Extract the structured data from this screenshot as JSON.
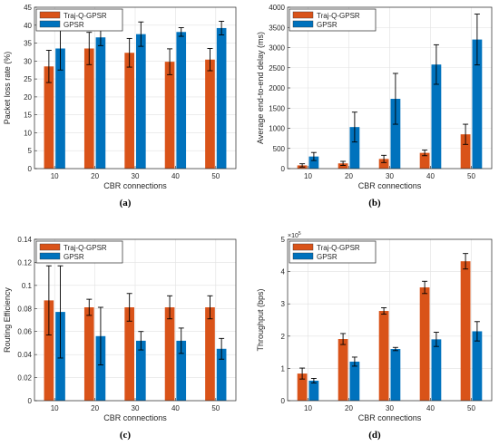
{
  "figure": {
    "panels": [
      {
        "caption": "(a)"
      },
      {
        "caption": "(b)"
      },
      {
        "caption": "(c)"
      },
      {
        "caption": "(d)"
      }
    ]
  },
  "chart_data": [
    {
      "type": "bar",
      "xlabel": "CBR connections",
      "ylabel": "Packet loss rate (%)",
      "categories": [
        "10",
        "20",
        "30",
        "40",
        "50"
      ],
      "ylim": [
        0,
        45
      ],
      "yticks": [
        0,
        5,
        10,
        15,
        20,
        25,
        30,
        35,
        40,
        45
      ],
      "ytick_labels": [
        "0",
        "5",
        "10",
        "15",
        "20",
        "25",
        "30",
        "35",
        "40",
        "45"
      ],
      "grid": true,
      "legend": "top-left",
      "series": [
        {
          "name": "Traj-Q-GPSR",
          "values": [
            28.5,
            33.5,
            32.3,
            29.8,
            30.4
          ],
          "errors": [
            4.5,
            4.5,
            4.0,
            3.6,
            3.1
          ]
        },
        {
          "name": "GPSR",
          "values": [
            33.5,
            36.6,
            37.5,
            38.1,
            39.2
          ],
          "errors": [
            6.0,
            2.3,
            3.4,
            1.2,
            1.9
          ]
        }
      ],
      "colors": [
        "#D95319",
        "#0072BD"
      ]
    },
    {
      "type": "bar",
      "xlabel": "CBR connections",
      "ylabel": "Average end-to-end delay (ms)",
      "categories": [
        "10",
        "20",
        "30",
        "40",
        "50"
      ],
      "ylim": [
        0,
        4000
      ],
      "yticks": [
        0,
        500,
        1000,
        1500,
        2000,
        2500,
        3000,
        3500,
        4000
      ],
      "ytick_labels": [
        "0",
        "500",
        "1000",
        "1500",
        "2000",
        "2500",
        "3000",
        "3500",
        "4000"
      ],
      "grid": true,
      "legend": "top-left",
      "series": [
        {
          "name": "Traj-Q-GPSR",
          "values": [
            80,
            130,
            240,
            390,
            850
          ],
          "errors": [
            40,
            50,
            90,
            70,
            250
          ]
        },
        {
          "name": "GPSR",
          "values": [
            300,
            1030,
            1730,
            2580,
            3200
          ],
          "errors": [
            100,
            370,
            630,
            490,
            630
          ]
        }
      ],
      "colors": [
        "#D95319",
        "#0072BD"
      ]
    },
    {
      "type": "bar",
      "xlabel": "CBR connections",
      "ylabel": "Routing Efficiency",
      "categories": [
        "10",
        "20",
        "30",
        "40",
        "50"
      ],
      "ylim": [
        0,
        0.14
      ],
      "yticks": [
        0,
        0.02,
        0.04,
        0.06,
        0.08,
        0.1,
        0.12,
        0.14
      ],
      "ytick_labels": [
        "0",
        "0.02",
        "0.04",
        "0.06",
        "0.08",
        "0.1",
        "0.12",
        "0.14"
      ],
      "grid": true,
      "legend": "top-left",
      "series": [
        {
          "name": "Traj-Q-GPSR",
          "values": [
            0.087,
            0.081,
            0.081,
            0.081,
            0.081
          ],
          "errors": [
            0.03,
            0.007,
            0.012,
            0.01,
            0.01
          ]
        },
        {
          "name": "GPSR",
          "values": [
            0.077,
            0.056,
            0.052,
            0.052,
            0.045
          ],
          "errors": [
            0.04,
            0.025,
            0.008,
            0.011,
            0.009
          ]
        }
      ],
      "colors": [
        "#D95319",
        "#0072BD"
      ]
    },
    {
      "type": "bar",
      "xlabel": "CBR connections",
      "ylabel": "Throughput (bps)",
      "categories": [
        "10",
        "20",
        "30",
        "40",
        "50"
      ],
      "ylim": [
        0,
        5
      ],
      "yticks": [
        0,
        1,
        2,
        3,
        4,
        5
      ],
      "ytick_labels": [
        "0",
        "1",
        "2",
        "3",
        "4",
        "5"
      ],
      "exponent": "×10",
      "exponent_power": "5",
      "grid": true,
      "legend": "top-left",
      "series": [
        {
          "name": "Traj-Q-GPSR",
          "values": [
            0.84,
            1.91,
            2.78,
            3.51,
            4.32
          ],
          "errors": [
            0.17,
            0.17,
            0.1,
            0.19,
            0.24
          ]
        },
        {
          "name": "GPSR",
          "values": [
            0.62,
            1.21,
            1.6,
            1.9,
            2.15
          ],
          "errors": [
            0.07,
            0.14,
            0.05,
            0.22,
            0.3
          ]
        }
      ],
      "colors": [
        "#D95319",
        "#0072BD"
      ]
    }
  ]
}
